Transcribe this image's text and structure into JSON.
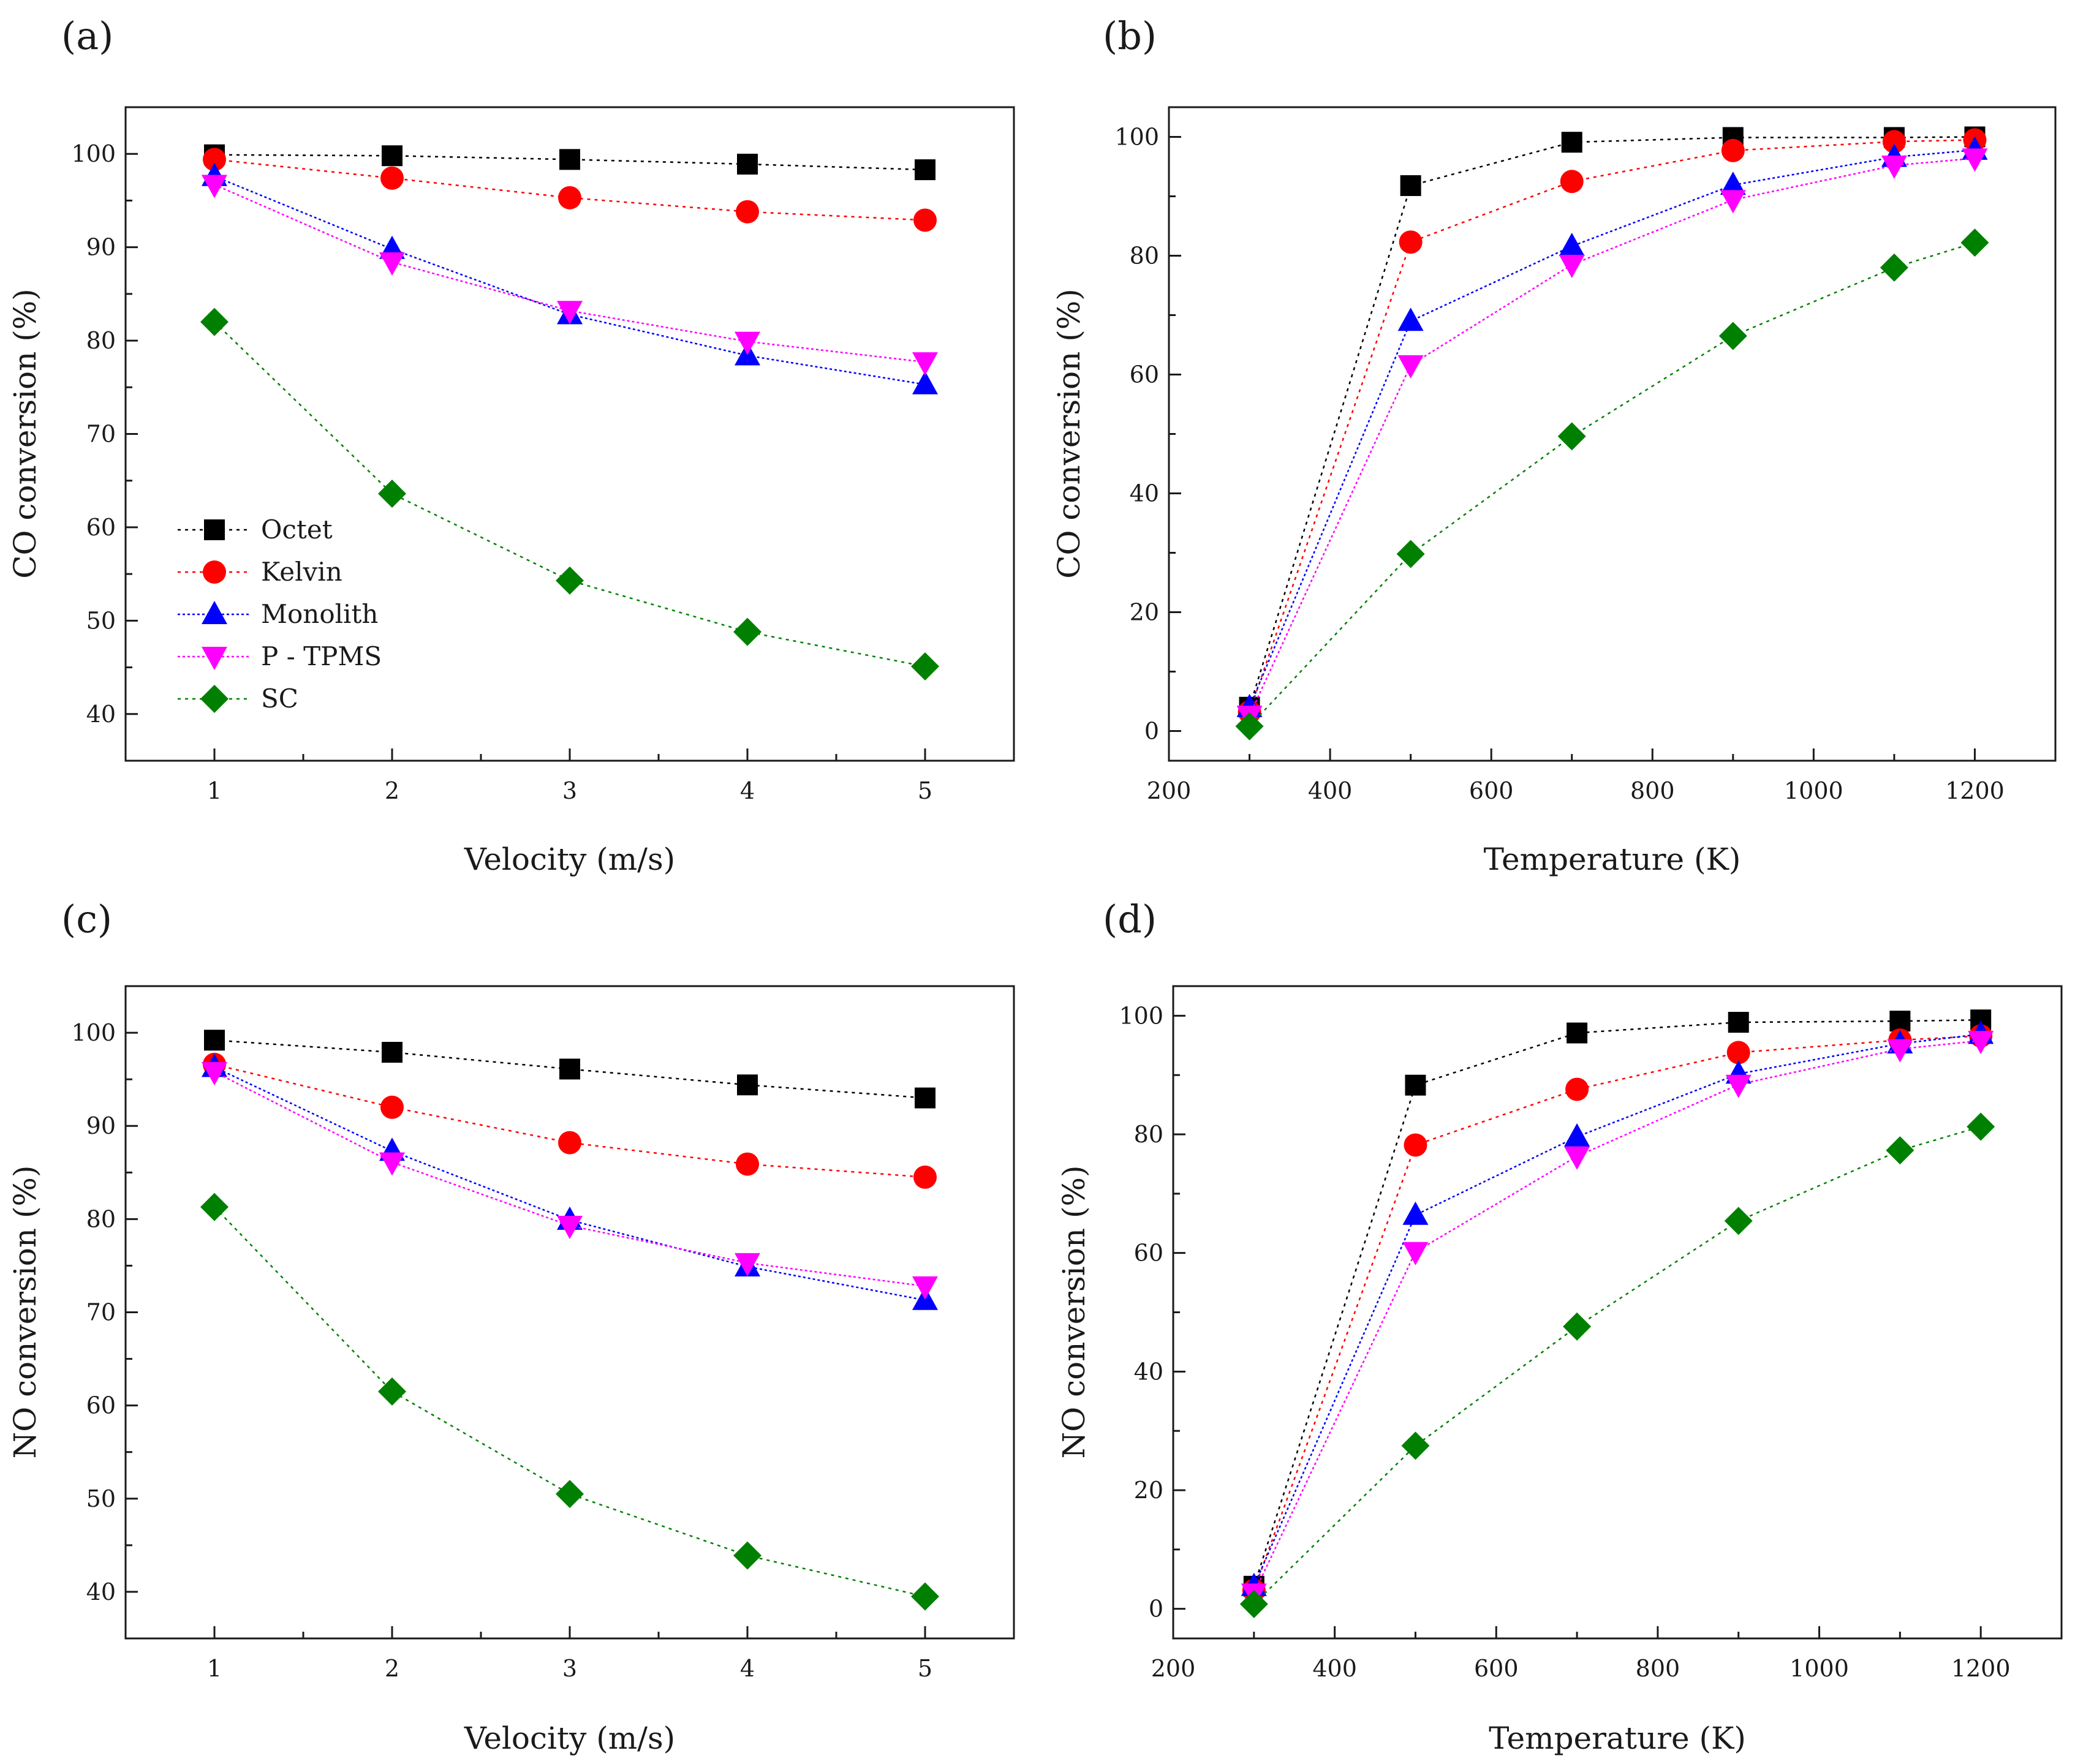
{
  "series_styles": [
    {
      "name": "Octet",
      "color": "#000000",
      "marker": "square"
    },
    {
      "name": "Kelvin",
      "color": "#ff0000",
      "marker": "circle"
    },
    {
      "name": "Monolith",
      "color": "#0000ff",
      "marker": "triangle-up"
    },
    {
      "name": "P - TPMS",
      "color": "#ff00ff",
      "marker": "triangle-down"
    },
    {
      "name": "SC",
      "color": "#008000",
      "marker": "diamond"
    }
  ],
  "chart_data": [
    {
      "panel": "(a)",
      "type": "line",
      "xlabel": "Velocity (m/s)",
      "ylabel": "CO conversion (%)",
      "xlim": [
        0.5,
        5.5
      ],
      "ylim": [
        35,
        105
      ],
      "xticks": [
        1,
        2,
        3,
        4,
        5
      ],
      "yticks": [
        40,
        50,
        60,
        70,
        80,
        90,
        100
      ],
      "legend": "bottom-left",
      "x": [
        1,
        2,
        3,
        4,
        5
      ],
      "series": [
        {
          "name": "Octet",
          "values": [
            99.9,
            99.8,
            99.4,
            98.9,
            98.3
          ]
        },
        {
          "name": "Kelvin",
          "values": [
            99.4,
            97.4,
            95.3,
            93.8,
            92.9
          ]
        },
        {
          "name": "Monolith",
          "values": [
            97.6,
            89.8,
            82.8,
            78.4,
            75.3
          ]
        },
        {
          "name": "P - TPMS",
          "values": [
            96.7,
            88.4,
            83.2,
            79.9,
            77.7
          ]
        },
        {
          "name": "SC",
          "values": [
            82.0,
            63.6,
            54.3,
            48.8,
            45.1
          ]
        }
      ]
    },
    {
      "panel": "(b)",
      "type": "line",
      "xlabel": "Temperature (K)",
      "ylabel": "CO conversion (%)",
      "xlim": [
        200,
        1300
      ],
      "ylim": [
        -5,
        105
      ],
      "xticks": [
        200,
        400,
        600,
        800,
        1000,
        1200
      ],
      "yticks": [
        0,
        20,
        40,
        60,
        80,
        100
      ],
      "x": [
        300,
        500,
        700,
        900,
        1100,
        1200
      ],
      "series": [
        {
          "name": "Octet",
          "values": [
            4.0,
            91.8,
            99.1,
            99.9,
            99.9,
            100.0
          ]
        },
        {
          "name": "Kelvin",
          "values": [
            3.2,
            82.3,
            92.5,
            97.7,
            99.2,
            99.5
          ]
        },
        {
          "name": "Monolith",
          "values": [
            4.0,
            69.0,
            81.6,
            91.9,
            96.6,
            97.8
          ]
        },
        {
          "name": "P - TPMS",
          "values": [
            2.6,
            61.6,
            78.5,
            89.4,
            95.2,
            96.4
          ]
        },
        {
          "name": "SC",
          "values": [
            0.8,
            29.8,
            49.6,
            66.5,
            78.0,
            82.2
          ]
        }
      ]
    },
    {
      "panel": "(c)",
      "type": "line",
      "xlabel": "Velocity (m/s)",
      "ylabel": "NO conversion (%)",
      "xlim": [
        0.5,
        5.5
      ],
      "ylim": [
        35,
        105
      ],
      "xticks": [
        1,
        2,
        3,
        4,
        5
      ],
      "yticks": [
        40,
        50,
        60,
        70,
        80,
        90,
        100
      ],
      "x": [
        1,
        2,
        3,
        4,
        5
      ],
      "series": [
        {
          "name": "Octet",
          "values": [
            99.2,
            97.9,
            96.1,
            94.4,
            93.0
          ]
        },
        {
          "name": "Kelvin",
          "values": [
            96.6,
            92.0,
            88.2,
            85.9,
            84.5
          ]
        },
        {
          "name": "Monolith",
          "values": [
            96.3,
            87.3,
            79.9,
            74.9,
            71.3
          ]
        },
        {
          "name": "P - TPMS",
          "values": [
            95.8,
            86.1,
            79.3,
            75.3,
            72.8
          ]
        },
        {
          "name": "SC",
          "values": [
            81.3,
            61.5,
            50.5,
            43.9,
            39.5
          ]
        }
      ]
    },
    {
      "panel": "(d)",
      "type": "line",
      "xlabel": "Temperature (K)",
      "ylabel": "NO conversion (%)",
      "xlim": [
        200,
        1300
      ],
      "ylim": [
        -5,
        105
      ],
      "xticks": [
        200,
        400,
        600,
        800,
        1000,
        1200
      ],
      "yticks": [
        0,
        20,
        40,
        60,
        80,
        100
      ],
      "x": [
        300,
        500,
        700,
        900,
        1100,
        1200
      ],
      "series": [
        {
          "name": "Octet",
          "values": [
            3.8,
            88.3,
            97.1,
            98.9,
            99.1,
            99.3
          ]
        },
        {
          "name": "Kelvin",
          "values": [
            3.1,
            78.2,
            87.6,
            93.8,
            95.9,
            96.6
          ]
        },
        {
          "name": "Monolith",
          "values": [
            3.8,
            66.4,
            79.6,
            90.2,
            95.3,
            96.9
          ]
        },
        {
          "name": "P - TPMS",
          "values": [
            2.6,
            60.2,
            76.3,
            88.4,
            94.4,
            95.8
          ]
        },
        {
          "name": "SC",
          "values": [
            0.8,
            27.5,
            47.6,
            65.4,
            77.3,
            81.3
          ]
        }
      ]
    }
  ]
}
